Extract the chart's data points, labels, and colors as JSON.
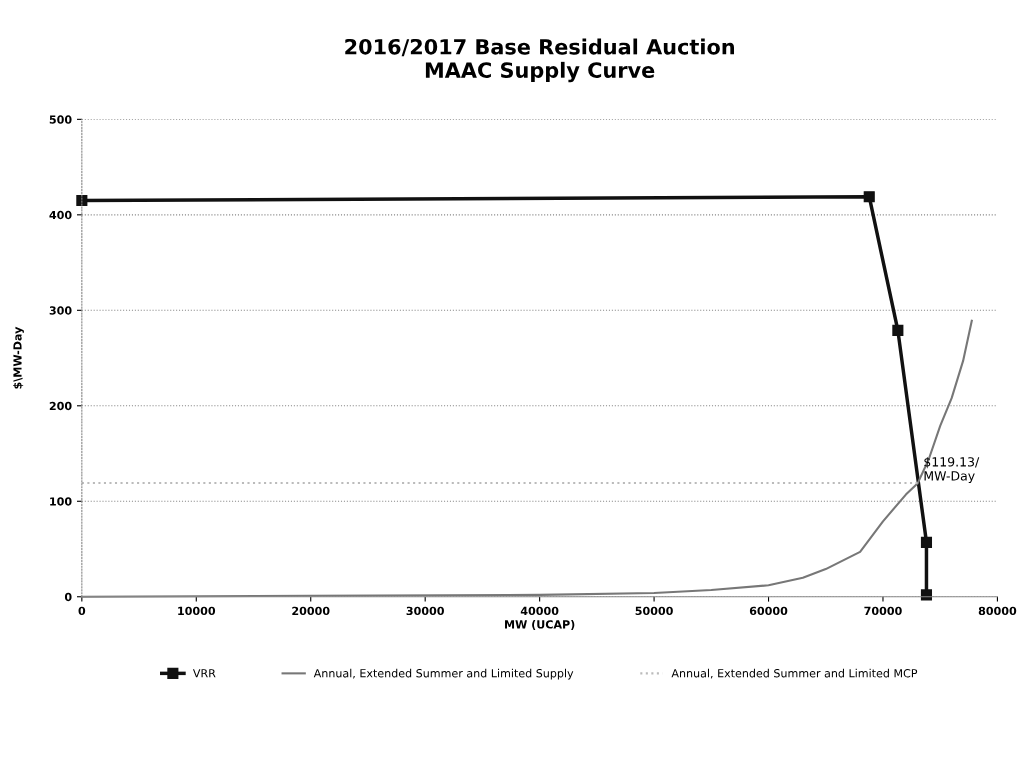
{
  "chart_data": {
    "type": "line",
    "title": "2016/2017 Base Residual Auction\nMAAC Supply Curve",
    "xlabel": "MW (UCAP)",
    "ylabel": "$\\MW-Day",
    "xlim": [
      0,
      80000
    ],
    "xticks": [
      0,
      10000,
      20000,
      30000,
      40000,
      50000,
      60000,
      70000,
      80000
    ],
    "ylim": [
      0,
      500
    ],
    "yticks": [
      0,
      100,
      200,
      300,
      400,
      500
    ],
    "grid": "y",
    "legend": "bottom",
    "series": [
      {
        "name": "VRR",
        "color": "#111111",
        "marker": "square",
        "line_style": "solid",
        "x": [
          0,
          68800,
          71300,
          73800,
          73800
        ],
        "values": [
          415,
          419,
          279,
          57,
          2
        ]
      },
      {
        "name": "Annual, Extended Summer and Limited Supply",
        "color": "#777777",
        "marker": "none",
        "line_style": "solid",
        "x": [
          0,
          20000,
          40000,
          50000,
          55000,
          60000,
          63000,
          65000,
          68000,
          70000,
          72000,
          73040,
          74000,
          75000,
          76000,
          77000,
          77760
        ],
        "values": [
          0,
          1,
          2,
          4,
          7,
          12,
          20,
          29,
          47,
          79,
          107,
          119,
          144,
          179,
          208,
          247,
          289
        ]
      },
      {
        "name": "Annual, Extended Summer and Limited MCP",
        "color": "#bbbbbb",
        "marker": "none",
        "line_style": "dotted",
        "x": [
          0,
          73040
        ],
        "values": [
          119.13,
          119.13
        ]
      }
    ],
    "annotations": [
      {
        "text": "$119.13/\nMW-Day",
        "x": 73040,
        "y": 119.13
      }
    ]
  }
}
